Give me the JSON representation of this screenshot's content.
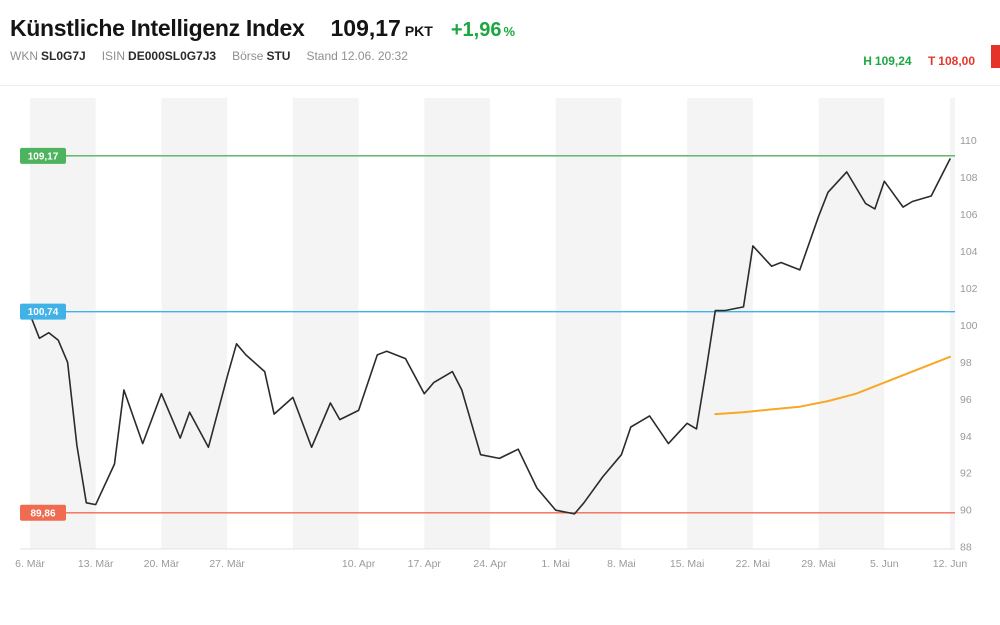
{
  "header": {
    "title": "Künstliche Intelligenz Index",
    "price": "109,17",
    "price_unit": "PKT",
    "change": "+1,96",
    "change_unit": "%",
    "info": {
      "wkn_label": "WKN",
      "wkn": "SL0G7J",
      "isin_label": "ISIN",
      "isin": "DE000SL0G7J3",
      "exchange_label": "Börse",
      "exchange": "STU",
      "stand": "Stand 12.06. 20:32"
    },
    "day_range": {
      "high_label": "H",
      "high": "109,24",
      "low_label": "T",
      "low": "108,00"
    },
    "colors": {
      "positive": "#1ba843",
      "negative": "#e5382b",
      "indicator_strip": "#e5332a"
    }
  },
  "chart_data": {
    "type": "line",
    "ylim": [
      87.9,
      112.3
    ],
    "yticks": [
      88,
      90,
      92,
      94,
      96,
      98,
      100,
      102,
      104,
      106,
      108,
      110
    ],
    "x_domain": [
      0,
      98
    ],
    "week_stripe_days": 7,
    "stripe_color": "#f4f4f5",
    "axis_text_color": "#9a9a9a",
    "xticks": [
      {
        "day": 0,
        "label": "6. Mär"
      },
      {
        "day": 7,
        "label": "13. Mär"
      },
      {
        "day": 14,
        "label": "20. Mär"
      },
      {
        "day": 21,
        "label": "27. Mär"
      },
      {
        "day": 35,
        "label": "10. Apr"
      },
      {
        "day": 42,
        "label": "17. Apr"
      },
      {
        "day": 49,
        "label": "24. Apr"
      },
      {
        "day": 56,
        "label": "1. Mai"
      },
      {
        "day": 63,
        "label": "8. Mai"
      },
      {
        "day": 70,
        "label": "15. Mai"
      },
      {
        "day": 77,
        "label": "22. Mai"
      },
      {
        "day": 84,
        "label": "29. Mai"
      },
      {
        "day": 91,
        "label": "5. Jun"
      },
      {
        "day": 98,
        "label": "12. Jun"
      }
    ],
    "reference_lines": [
      {
        "label": "109,17",
        "value": 109.17,
        "color": "#4db35e"
      },
      {
        "label": "100,74",
        "value": 100.74,
        "color": "#41b2e8"
      },
      {
        "label": "89,86",
        "value": 89.86,
        "color": "#ef6c51"
      }
    ],
    "series": [
      {
        "name": "index",
        "color": "#2b2b2b",
        "width": 1.6,
        "x": [
          0,
          1,
          2,
          3,
          4,
          5,
          6,
          7,
          9,
          10,
          12,
          14,
          16,
          17,
          19,
          21,
          22,
          23,
          25,
          26,
          28,
          30,
          32,
          33,
          35,
          37,
          38,
          40,
          42,
          43,
          45,
          46,
          48,
          50,
          52,
          54,
          56,
          58,
          59,
          61,
          63,
          64,
          66,
          68,
          70,
          71,
          72,
          73,
          74,
          76,
          77,
          79,
          80,
          82,
          84,
          85,
          87,
          89,
          90,
          91,
          93,
          94,
          96,
          98
        ],
        "values": [
          100.6,
          99.3,
          99.6,
          99.2,
          98.0,
          93.5,
          90.4,
          90.3,
          92.5,
          96.5,
          93.6,
          96.3,
          93.9,
          95.3,
          93.4,
          97.2,
          99.0,
          98.4,
          97.5,
          95.2,
          96.1,
          93.4,
          95.8,
          94.9,
          95.4,
          98.4,
          98.6,
          98.2,
          96.3,
          96.9,
          97.5,
          96.5,
          93.0,
          92.8,
          93.3,
          91.2,
          90.0,
          89.8,
          90.4,
          91.8,
          93.0,
          94.5,
          95.1,
          93.6,
          94.7,
          94.4,
          97.5,
          100.8,
          100.8,
          101.0,
          104.3,
          103.2,
          103.4,
          103.0,
          105.9,
          107.2,
          108.3,
          106.6,
          106.3,
          107.8,
          106.4,
          106.7,
          107.0,
          109.0
        ]
      },
      {
        "name": "moving-average",
        "color": "#f7a824",
        "width": 2,
        "x": [
          73,
          76,
          79,
          82,
          85,
          88,
          91,
          94,
          96,
          98
        ],
        "values": [
          95.2,
          95.3,
          95.45,
          95.6,
          95.9,
          96.3,
          96.9,
          97.5,
          97.9,
          98.3
        ]
      }
    ]
  }
}
